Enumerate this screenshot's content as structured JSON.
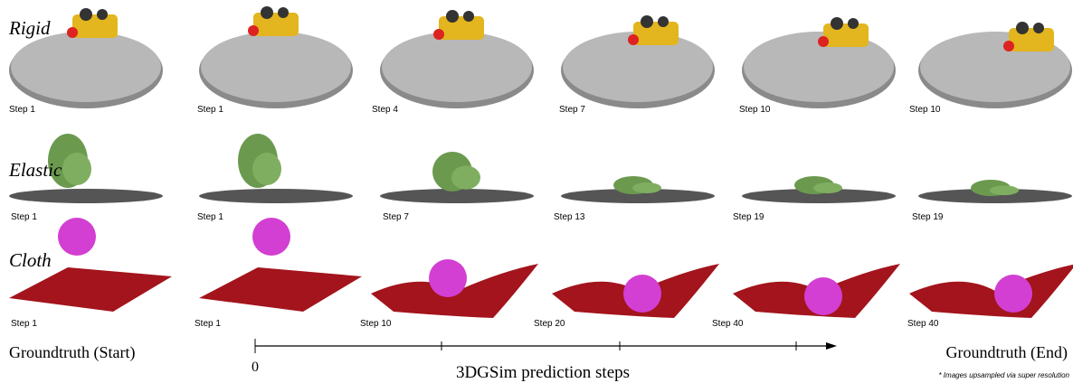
{
  "rows": [
    {
      "label": "Rigid",
      "steps": [
        "Step 1",
        "Step 1",
        "Step 4",
        "Step 7",
        "Step 10",
        "Step 10"
      ]
    },
    {
      "label": "Elastic",
      "steps": [
        "Step 1",
        "Step 1",
        "Step 7",
        "Step 13",
        "Step 19",
        "Step 19"
      ]
    },
    {
      "label": "Cloth",
      "steps": [
        "Step 1",
        "Step 1",
        "Step 10",
        "Step 20",
        "Step 40",
        "Step 40"
      ]
    }
  ],
  "footer": {
    "start": "Groundtruth (Start)",
    "end": "Groundtruth (End)",
    "axis_origin": "0",
    "axis_label": "3DGSim prediction steps",
    "note": "* Images upsampled via super resolution"
  }
}
